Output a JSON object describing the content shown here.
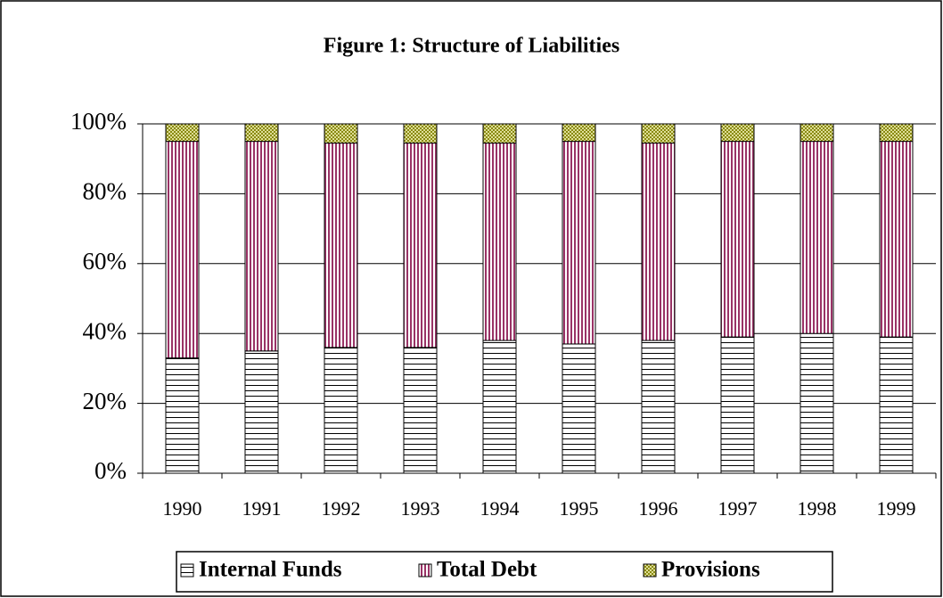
{
  "chart_data": {
    "type": "stacked_bar",
    "title": "Figure 1: Structure of Liabilities",
    "categories": [
      "1990",
      "1991",
      "1992",
      "1993",
      "1994",
      "1995",
      "1996",
      "1997",
      "1998",
      "1999"
    ],
    "series": [
      {
        "name": "Internal Funds",
        "color": "#000000",
        "pattern": "horizontal",
        "values": [
          33,
          35,
          36,
          36,
          38,
          37,
          38,
          39,
          40,
          39
        ]
      },
      {
        "name": "Total Debt",
        "color": "#993366",
        "pattern": "vertical",
        "values": [
          62,
          60,
          58.5,
          58.5,
          56.5,
          58,
          56.5,
          56,
          55,
          56
        ]
      },
      {
        "name": "Provisions",
        "color": "#808000",
        "pattern": "crosshatch",
        "values": [
          5,
          5,
          5.5,
          5.5,
          5.5,
          5,
          5.5,
          5,
          5,
          5
        ]
      }
    ],
    "ylim": [
      0,
      100
    ],
    "yticks": [
      {
        "value": 0,
        "label": "0%"
      },
      {
        "value": 20,
        "label": "20%"
      },
      {
        "value": 40,
        "label": "40%"
      },
      {
        "value": 60,
        "label": "60%"
      },
      {
        "value": 80,
        "label": "80%"
      },
      {
        "value": 100,
        "label": "100%"
      }
    ],
    "grid": true,
    "legend": "bottom"
  }
}
